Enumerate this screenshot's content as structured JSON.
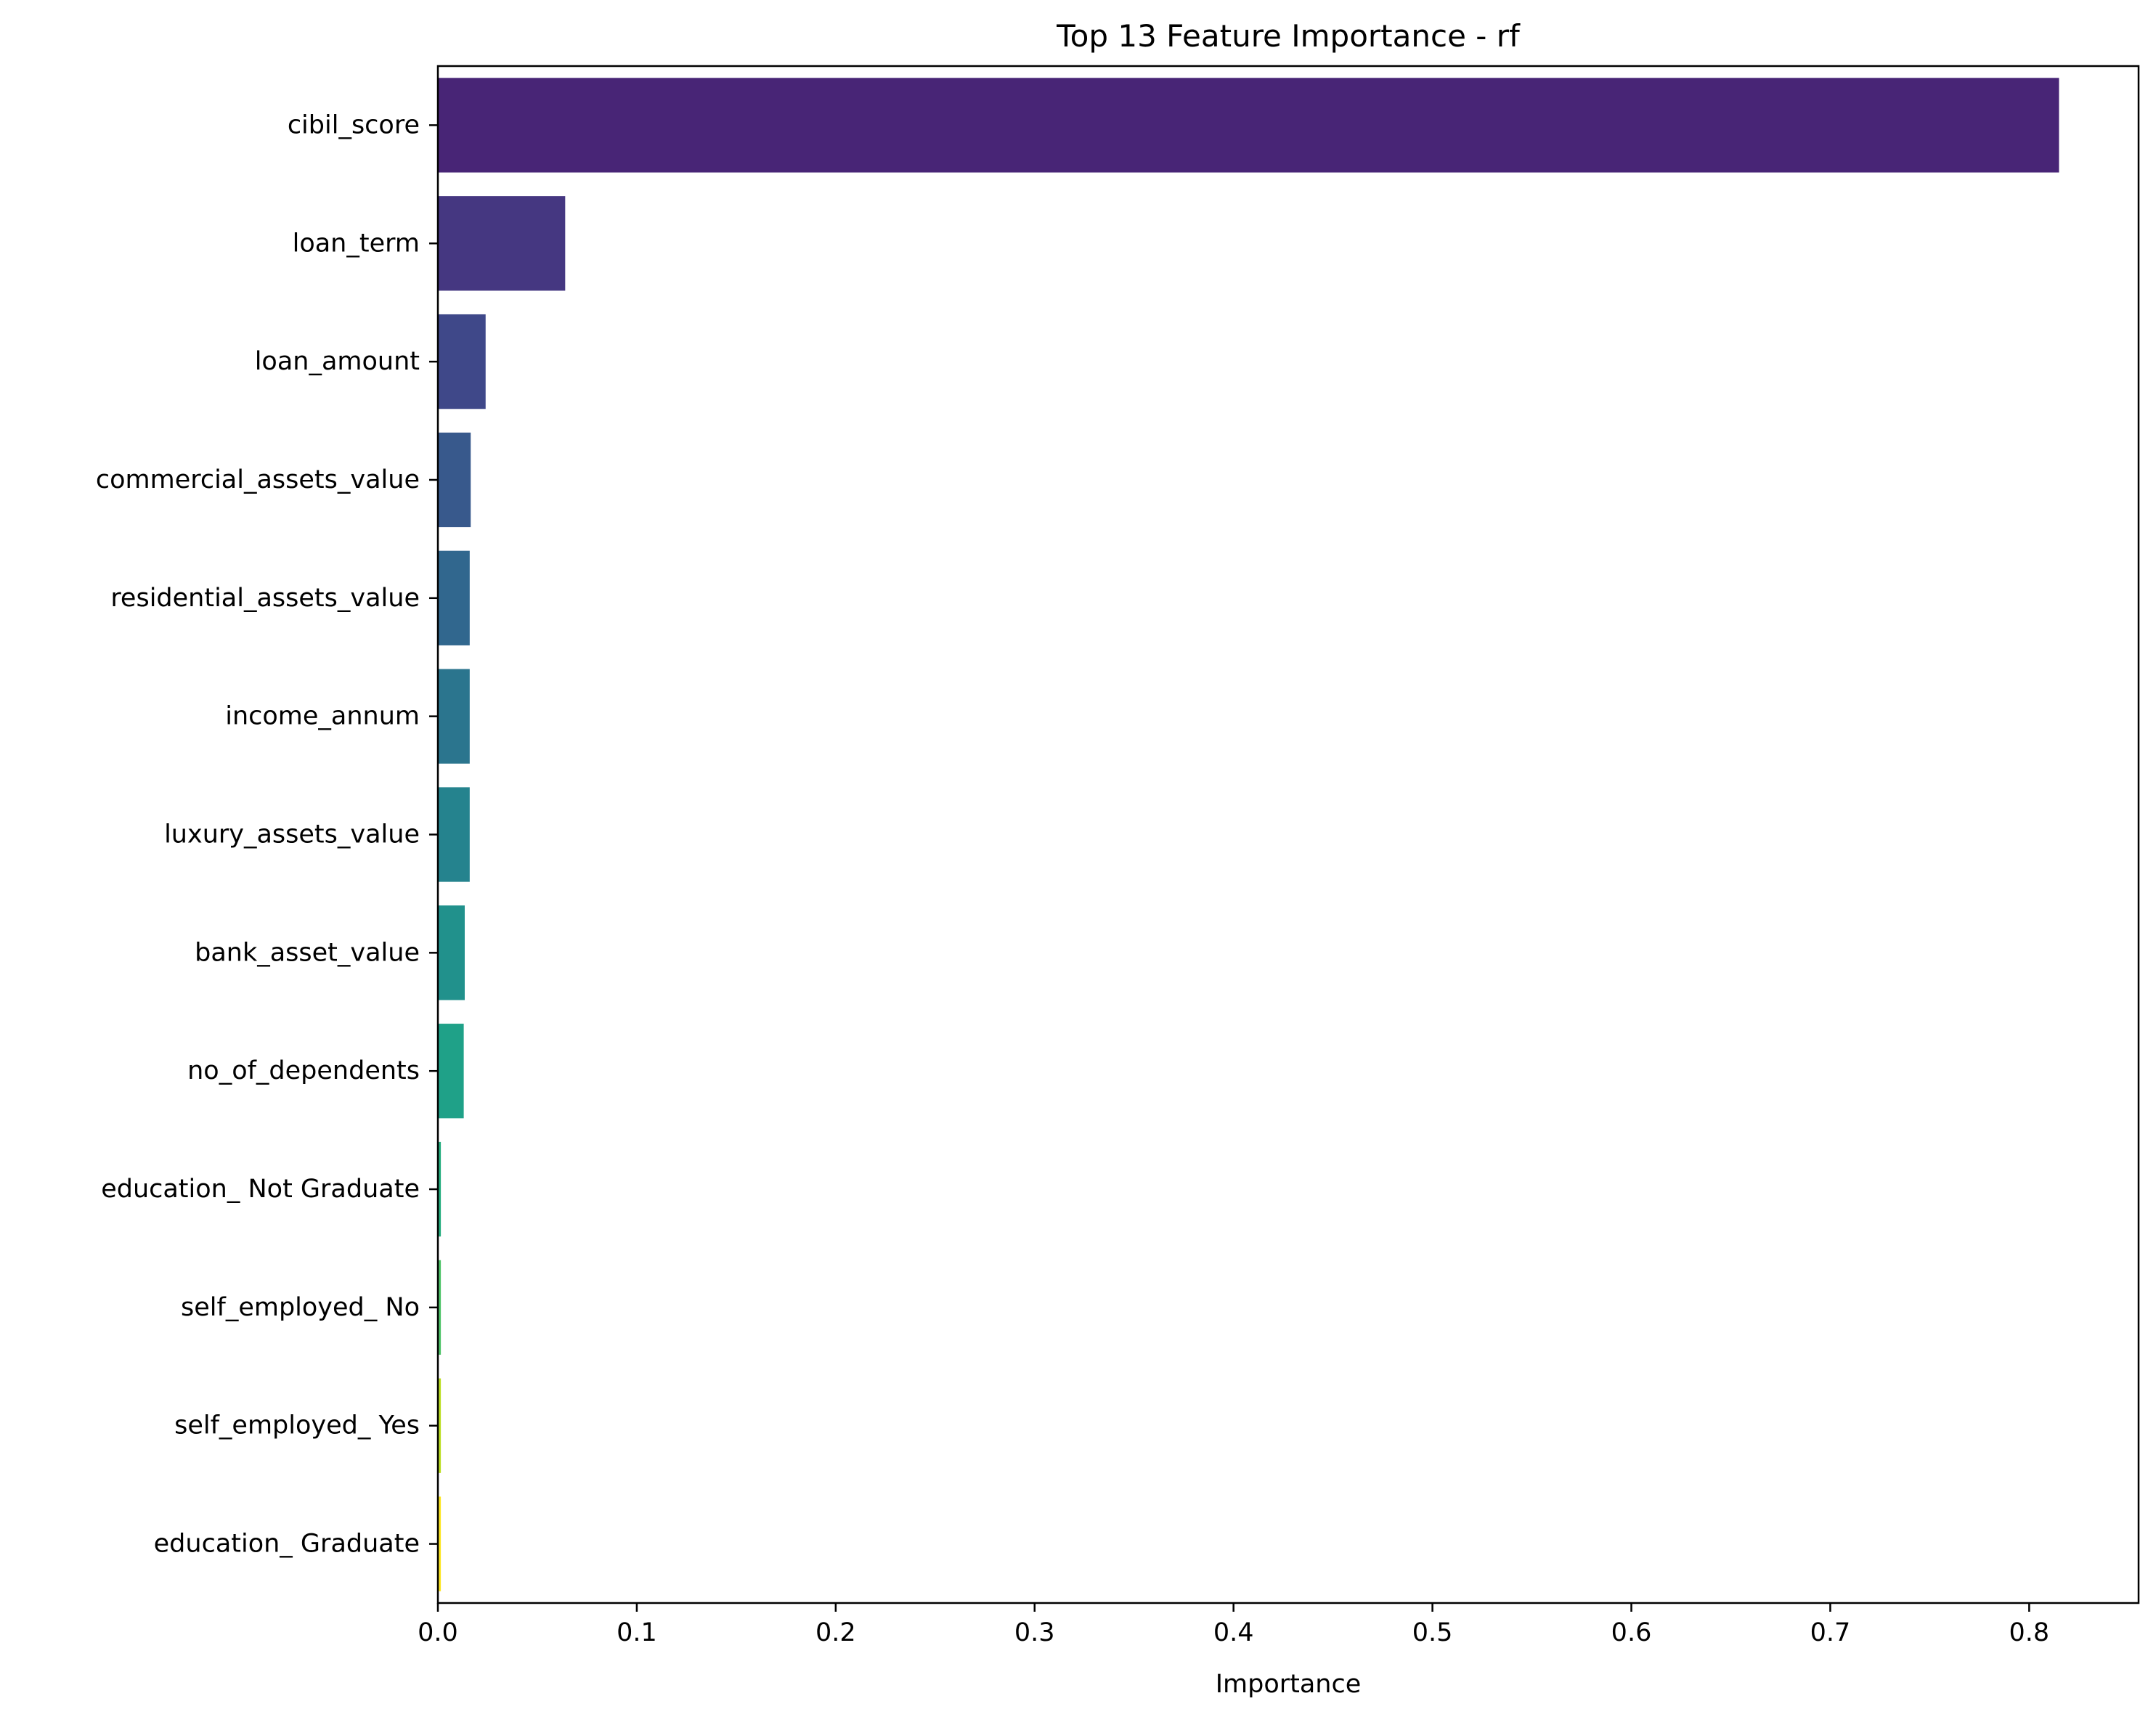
{
  "chart_data": {
    "type": "bar",
    "orientation": "horizontal",
    "title": "Top 13 Feature Importance - rf",
    "xlabel": "Importance",
    "ylabel": "",
    "xlim": [
      0.0,
      0.855
    ],
    "xticks": [
      0.0,
      0.1,
      0.2,
      0.3,
      0.4,
      0.5,
      0.6,
      0.7,
      0.8
    ],
    "xtick_labels": [
      "0.0",
      "0.1",
      "0.2",
      "0.3",
      "0.4",
      "0.5",
      "0.6",
      "0.7",
      "0.8"
    ],
    "grid": false,
    "legend": "none",
    "categories": [
      "cibil_score",
      "loan_term",
      "loan_amount",
      "commercial_assets_value",
      "residential_assets_value",
      "income_annum",
      "luxury_assets_value",
      "bank_asset_value",
      "no_of_dependents",
      "education_ Not Graduate",
      "self_employed_ No",
      "self_employed_ Yes",
      "education_ Graduate"
    ],
    "values": [
      0.815,
      0.064,
      0.024,
      0.0165,
      0.016,
      0.016,
      0.016,
      0.0135,
      0.013,
      0.0015,
      0.0015,
      0.0015,
      0.0015
    ],
    "colors": [
      "#482576",
      "#453781",
      "#3f4889",
      "#38598c",
      "#31678e",
      "#2b758e",
      "#25838e",
      "#21918c",
      "#1fa188",
      "#28ae80",
      "#50c46a",
      "#bddf26",
      "#fde725"
    ]
  }
}
